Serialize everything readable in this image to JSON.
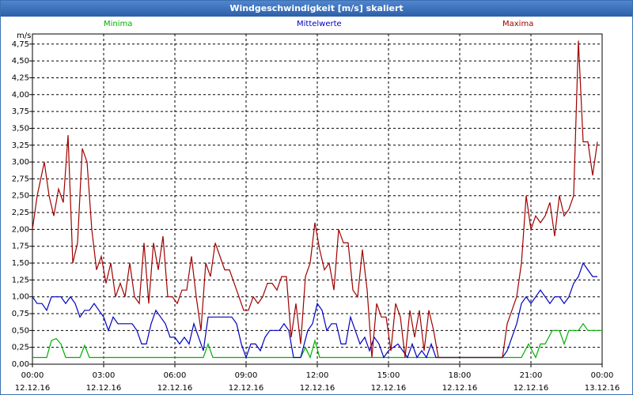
{
  "window": {
    "title": "Windgeschwindigkeit [m/s] skaliert"
  },
  "chart_data": {
    "type": "line",
    "title": "Windgeschwindigkeit [m/s] skaliert",
    "ylabel": "m/s",
    "ylim": [
      0,
      4.9
    ],
    "y_ticks": [
      "0,00",
      "0,25",
      "0,50",
      "0,75",
      "1,00",
      "1,25",
      "1,50",
      "1,75",
      "2,00",
      "2,25",
      "2,50",
      "2,75",
      "3,00",
      "3,25",
      "3,50",
      "3,75",
      "4,00",
      "4,25",
      "4,50",
      "4,75"
    ],
    "x_ticks": [
      {
        "time": "00:00",
        "date": "12.12.16"
      },
      {
        "time": "03:00",
        "date": "12.12.16"
      },
      {
        "time": "06:00",
        "date": "12.12.16"
      },
      {
        "time": "09:00",
        "date": "12.12.16"
      },
      {
        "time": "12:00",
        "date": "12.12.16"
      },
      {
        "time": "15:00",
        "date": "12.12.16"
      },
      {
        "time": "18:00",
        "date": "12.12.16"
      },
      {
        "time": "21:00",
        "date": "12.12.16"
      },
      {
        "time": "00:00",
        "date": "13.12.16"
      }
    ],
    "grid": true,
    "colors": {
      "minima": "#00b000",
      "mittelwerte": "#0000c0",
      "maxima": "#a00000"
    },
    "series": [
      {
        "name": "Minima",
        "color": "#00b000",
        "points": [
          [
            0,
            0.1
          ],
          [
            0.6,
            0.1
          ],
          [
            0.8,
            0.35
          ],
          [
            1.0,
            0.38
          ],
          [
            1.2,
            0.3
          ],
          [
            1.4,
            0.1
          ],
          [
            2.0,
            0.1
          ],
          [
            2.2,
            0.28
          ],
          [
            2.4,
            0.1
          ],
          [
            7.2,
            0.1
          ],
          [
            7.4,
            0.3
          ],
          [
            7.6,
            0.1
          ],
          [
            11.3,
            0.1
          ],
          [
            11.5,
            0.25
          ],
          [
            11.7,
            0.1
          ],
          [
            11.9,
            0.35
          ],
          [
            12.1,
            0.1
          ],
          [
            20.6,
            0.1
          ],
          [
            20.9,
            0.3
          ],
          [
            21.2,
            0.1
          ],
          [
            21.4,
            0.3
          ],
          [
            21.6,
            0.3
          ],
          [
            21.9,
            0.5
          ],
          [
            22.2,
            0.5
          ],
          [
            22.4,
            0.3
          ],
          [
            22.6,
            0.5
          ],
          [
            22.8,
            0.5
          ],
          [
            23.0,
            0.5
          ],
          [
            23.2,
            0.6
          ],
          [
            23.4,
            0.5
          ],
          [
            24,
            0.5
          ]
        ]
      },
      {
        "name": "Mittelwerte",
        "color": "#0000c0",
        "points": [
          [
            0,
            1.0
          ],
          [
            0.2,
            0.9
          ],
          [
            0.4,
            0.9
          ],
          [
            0.6,
            0.8
          ],
          [
            0.8,
            1.0
          ],
          [
            1.0,
            1.0
          ],
          [
            1.2,
            1.0
          ],
          [
            1.4,
            0.9
          ],
          [
            1.6,
            1.0
          ],
          [
            1.8,
            0.9
          ],
          [
            2.0,
            0.7
          ],
          [
            2.2,
            0.8
          ],
          [
            2.4,
            0.8
          ],
          [
            2.6,
            0.9
          ],
          [
            2.8,
            0.8
          ],
          [
            3.0,
            0.7
          ],
          [
            3.2,
            0.5
          ],
          [
            3.4,
            0.7
          ],
          [
            3.6,
            0.6
          ],
          [
            3.8,
            0.6
          ],
          [
            4.0,
            0.6
          ],
          [
            4.2,
            0.6
          ],
          [
            4.4,
            0.5
          ],
          [
            4.6,
            0.3
          ],
          [
            4.8,
            0.3
          ],
          [
            5.0,
            0.6
          ],
          [
            5.2,
            0.8
          ],
          [
            5.4,
            0.7
          ],
          [
            5.6,
            0.6
          ],
          [
            5.8,
            0.4
          ],
          [
            6.0,
            0.4
          ],
          [
            6.2,
            0.3
          ],
          [
            6.4,
            0.4
          ],
          [
            6.6,
            0.3
          ],
          [
            6.8,
            0.6
          ],
          [
            7.0,
            0.4
          ],
          [
            7.2,
            0.2
          ],
          [
            7.4,
            0.7
          ],
          [
            7.6,
            0.7
          ],
          [
            8.0,
            0.7
          ],
          [
            8.4,
            0.7
          ],
          [
            8.6,
            0.6
          ],
          [
            8.8,
            0.3
          ],
          [
            9.0,
            0.1
          ],
          [
            9.2,
            0.3
          ],
          [
            9.4,
            0.3
          ],
          [
            9.6,
            0.2
          ],
          [
            9.8,
            0.4
          ],
          [
            10.0,
            0.5
          ],
          [
            10.2,
            0.5
          ],
          [
            10.4,
            0.5
          ],
          [
            10.6,
            0.6
          ],
          [
            10.8,
            0.5
          ],
          [
            11.0,
            0.1
          ],
          [
            11.3,
            0.1
          ],
          [
            11.6,
            0.5
          ],
          [
            11.8,
            0.6
          ],
          [
            12.0,
            0.9
          ],
          [
            12.2,
            0.8
          ],
          [
            12.4,
            0.5
          ],
          [
            12.6,
            0.6
          ],
          [
            12.8,
            0.6
          ],
          [
            13.0,
            0.3
          ],
          [
            13.2,
            0.3
          ],
          [
            13.4,
            0.7
          ],
          [
            13.6,
            0.5
          ],
          [
            13.8,
            0.3
          ],
          [
            14.0,
            0.4
          ],
          [
            14.2,
            0.2
          ],
          [
            14.4,
            0.4
          ],
          [
            14.6,
            0.3
          ],
          [
            14.8,
            0.1
          ],
          [
            15.0,
            0.2
          ],
          [
            15.4,
            0.3
          ],
          [
            15.6,
            0.2
          ],
          [
            15.8,
            0.1
          ],
          [
            16.0,
            0.3
          ],
          [
            16.2,
            0.1
          ],
          [
            16.4,
            0.2
          ],
          [
            16.6,
            0.1
          ],
          [
            16.8,
            0.3
          ],
          [
            17.0,
            0.1
          ],
          [
            17.2,
            0.1
          ],
          [
            19.8,
            0.1
          ],
          [
            20.0,
            0.2
          ],
          [
            20.2,
            0.4
          ],
          [
            20.4,
            0.6
          ],
          [
            20.6,
            0.9
          ],
          [
            20.8,
            1.0
          ],
          [
            21.0,
            0.9
          ],
          [
            21.2,
            1.0
          ],
          [
            21.4,
            1.1
          ],
          [
            21.6,
            1.0
          ],
          [
            21.8,
            0.9
          ],
          [
            22.0,
            1.0
          ],
          [
            22.2,
            1.0
          ],
          [
            22.4,
            0.9
          ],
          [
            22.6,
            1.0
          ],
          [
            22.8,
            1.2
          ],
          [
            23.0,
            1.3
          ],
          [
            23.2,
            1.5
          ],
          [
            23.4,
            1.4
          ],
          [
            23.6,
            1.3
          ],
          [
            23.8,
            1.3
          ]
        ]
      },
      {
        "name": "Maxima",
        "color": "#a00000",
        "points": [
          [
            0,
            2.0
          ],
          [
            0.2,
            2.5
          ],
          [
            0.5,
            3.0
          ],
          [
            0.7,
            2.5
          ],
          [
            0.9,
            2.2
          ],
          [
            1.1,
            2.6
          ],
          [
            1.3,
            2.4
          ],
          [
            1.5,
            3.4
          ],
          [
            1.7,
            1.5
          ],
          [
            1.9,
            1.8
          ],
          [
            2.1,
            3.2
          ],
          [
            2.3,
            3.0
          ],
          [
            2.5,
            2.0
          ],
          [
            2.7,
            1.4
          ],
          [
            2.9,
            1.6
          ],
          [
            3.1,
            1.2
          ],
          [
            3.3,
            1.5
          ],
          [
            3.5,
            1.0
          ],
          [
            3.7,
            1.2
          ],
          [
            3.9,
            1.0
          ],
          [
            4.1,
            1.5
          ],
          [
            4.3,
            1.0
          ],
          [
            4.5,
            0.9
          ],
          [
            4.7,
            1.8
          ],
          [
            4.9,
            0.9
          ],
          [
            5.1,
            1.8
          ],
          [
            5.3,
            1.4
          ],
          [
            5.5,
            1.9
          ],
          [
            5.7,
            1.0
          ],
          [
            5.9,
            1.0
          ],
          [
            6.1,
            0.9
          ],
          [
            6.3,
            1.1
          ],
          [
            6.5,
            1.1
          ],
          [
            6.7,
            1.6
          ],
          [
            6.9,
            1.0
          ],
          [
            7.1,
            0.5
          ],
          [
            7.3,
            1.5
          ],
          [
            7.5,
            1.3
          ],
          [
            7.7,
            1.8
          ],
          [
            7.9,
            1.6
          ],
          [
            8.1,
            1.4
          ],
          [
            8.3,
            1.4
          ],
          [
            8.5,
            1.2
          ],
          [
            8.7,
            1.0
          ],
          [
            8.9,
            0.8
          ],
          [
            9.1,
            0.8
          ],
          [
            9.3,
            1.0
          ],
          [
            9.5,
            0.9
          ],
          [
            9.7,
            1.0
          ],
          [
            9.9,
            1.2
          ],
          [
            10.1,
            1.2
          ],
          [
            10.3,
            1.1
          ],
          [
            10.5,
            1.3
          ],
          [
            10.7,
            1.3
          ],
          [
            10.9,
            0.4
          ],
          [
            11.1,
            0.9
          ],
          [
            11.3,
            0.3
          ],
          [
            11.5,
            1.3
          ],
          [
            11.7,
            1.5
          ],
          [
            11.9,
            2.1
          ],
          [
            12.1,
            1.7
          ],
          [
            12.3,
            1.4
          ],
          [
            12.5,
            1.5
          ],
          [
            12.7,
            1.1
          ],
          [
            12.9,
            2.0
          ],
          [
            13.1,
            1.8
          ],
          [
            13.3,
            1.8
          ],
          [
            13.5,
            1.1
          ],
          [
            13.7,
            1.0
          ],
          [
            13.9,
            1.7
          ],
          [
            14.1,
            1.1
          ],
          [
            14.3,
            0.1
          ],
          [
            14.5,
            0.9
          ],
          [
            14.7,
            0.7
          ],
          [
            14.9,
            0.7
          ],
          [
            15.1,
            0.2
          ],
          [
            15.3,
            0.9
          ],
          [
            15.5,
            0.7
          ],
          [
            15.7,
            0.1
          ],
          [
            15.9,
            0.8
          ],
          [
            16.1,
            0.4
          ],
          [
            16.3,
            0.8
          ],
          [
            16.5,
            0.2
          ],
          [
            16.7,
            0.8
          ],
          [
            16.9,
            0.5
          ],
          [
            17.1,
            0.1
          ],
          [
            17.3,
            0.1
          ],
          [
            19.8,
            0.1
          ],
          [
            20.0,
            0.6
          ],
          [
            20.2,
            0.8
          ],
          [
            20.4,
            1.0
          ],
          [
            20.6,
            1.5
          ],
          [
            20.8,
            2.5
          ],
          [
            21.0,
            2.0
          ],
          [
            21.2,
            2.2
          ],
          [
            21.4,
            2.1
          ],
          [
            21.6,
            2.2
          ],
          [
            21.8,
            2.4
          ],
          [
            22.0,
            1.9
          ],
          [
            22.2,
            2.5
          ],
          [
            22.4,
            2.2
          ],
          [
            22.6,
            2.3
          ],
          [
            22.8,
            2.5
          ],
          [
            23.0,
            4.8
          ],
          [
            23.2,
            3.3
          ],
          [
            23.4,
            3.3
          ],
          [
            23.6,
            2.8
          ],
          [
            23.8,
            3.3
          ]
        ]
      }
    ]
  }
}
